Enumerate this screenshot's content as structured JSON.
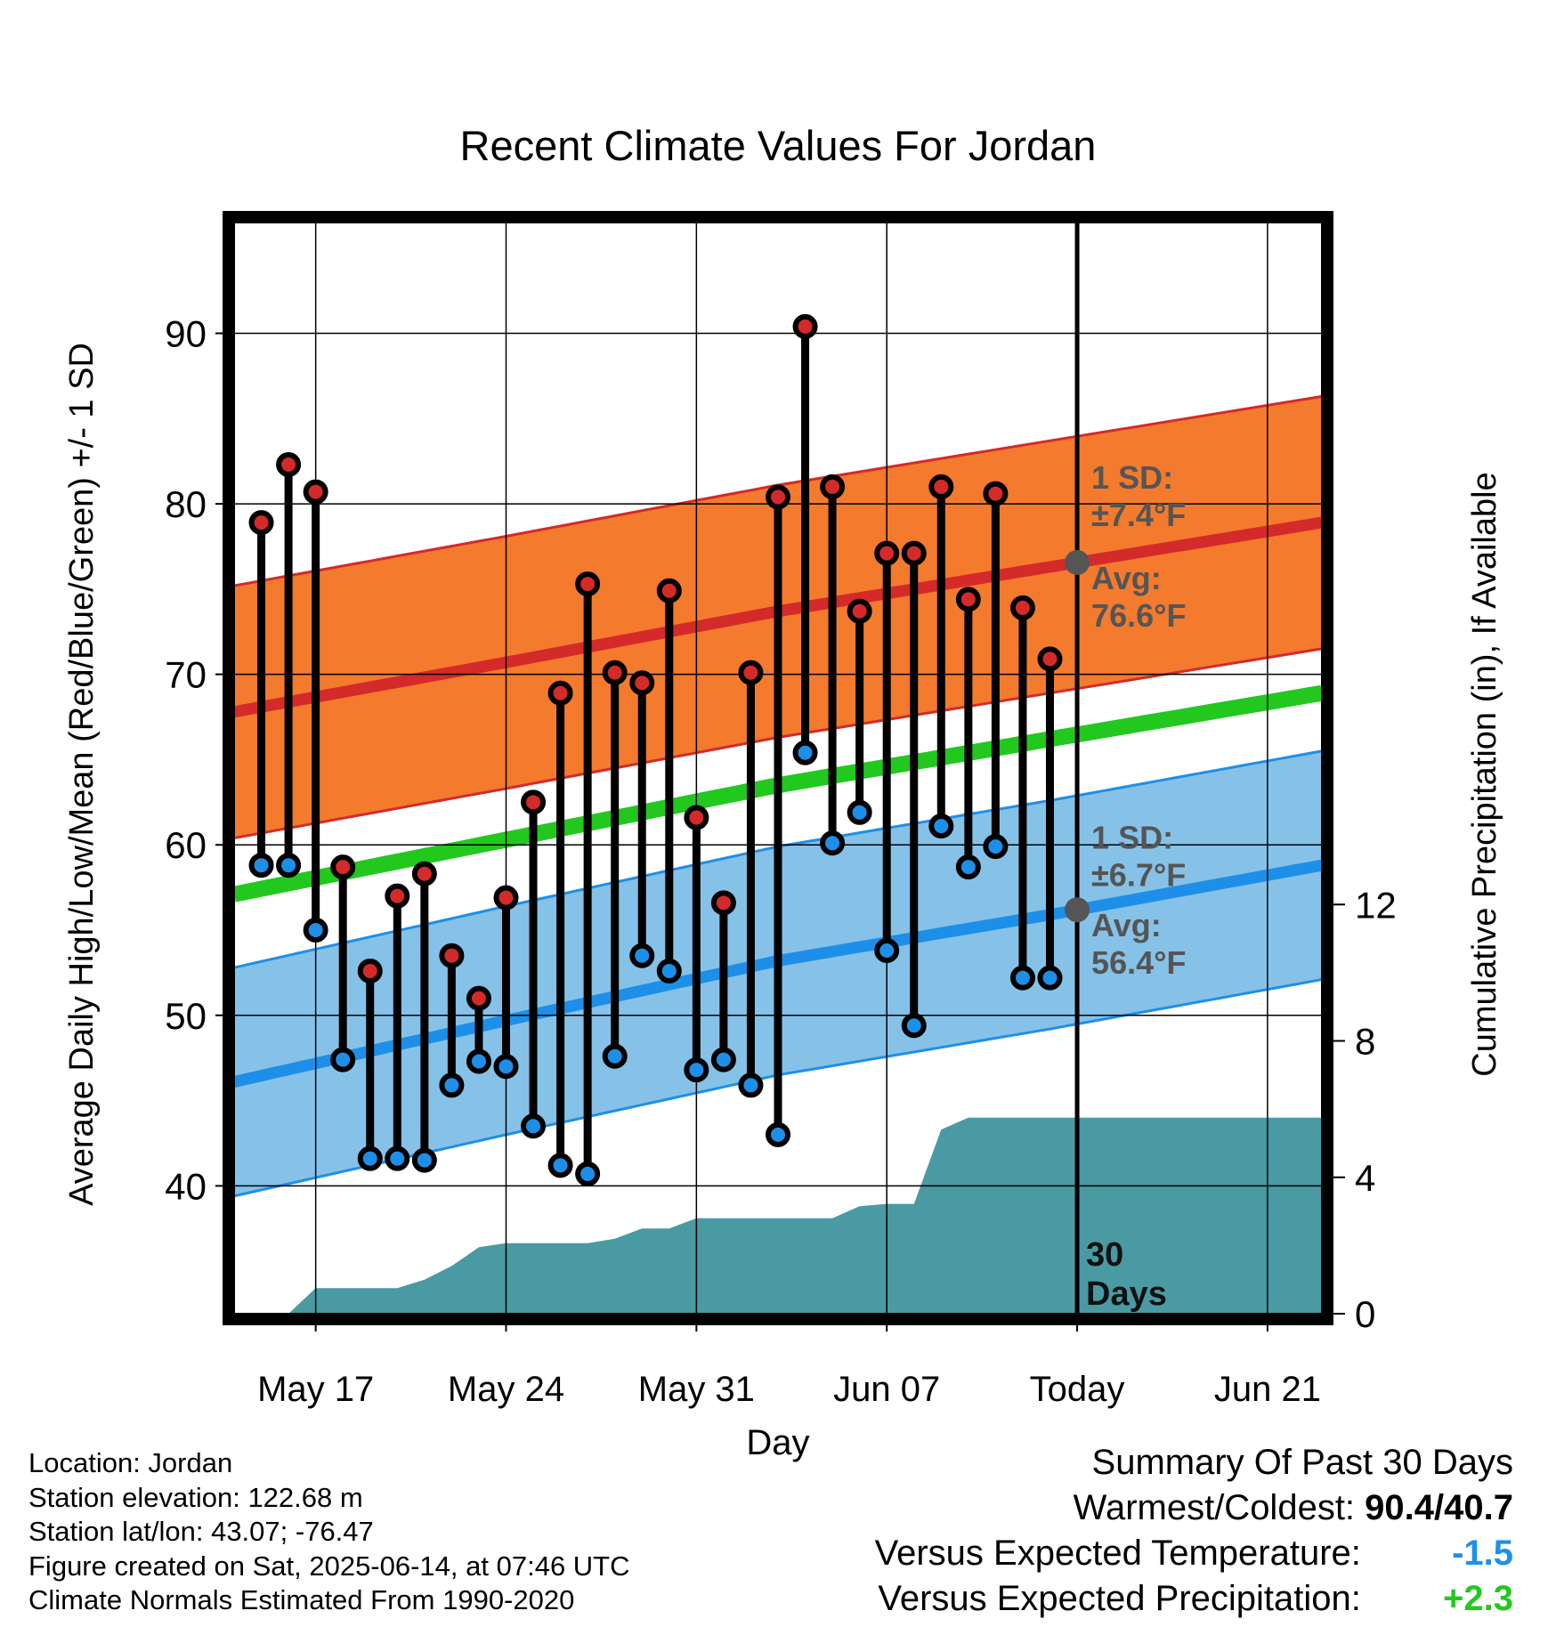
{
  "chart_data": {
    "type": "line",
    "title": "Recent Climate Values For Jordan",
    "xlabel": "Day",
    "ylabel_left": "Average Daily High/Low/Mean (Red/Blue/Green) +/- 1 SD",
    "ylabel_right": "Cumulative Precipitation (in), If Available",
    "ylim_left": [
      32.5,
      96.5
    ],
    "ylim_right": [
      0,
      32
    ],
    "yticks_left": [
      40,
      50,
      60,
      70,
      80,
      90
    ],
    "yticks_right": [
      0,
      4,
      8,
      12
    ],
    "x_range": [
      "2025-05-14",
      "2025-06-23"
    ],
    "x_ticks": [
      {
        "date": "2025-05-17",
        "label": "May 17"
      },
      {
        "date": "2025-05-24",
        "label": "May 24"
      },
      {
        "date": "2025-05-31",
        "label": "May 31"
      },
      {
        "date": "2025-06-07",
        "label": "Jun 07"
      },
      {
        "date": "2025-06-14",
        "label": "Today"
      },
      {
        "date": "2025-06-21",
        "label": "Jun 21"
      }
    ],
    "today": "2025-06-14",
    "days_label": "30 Days",
    "grid": true,
    "colors": {
      "high": "#d42a2a",
      "high_band": "#f47a2e",
      "low": "#1e8fe8",
      "low_band": "#86c2e8",
      "mean": "#22c81e",
      "precip": "#4a9aa3",
      "stick": "#000000",
      "today_dot": "#555555"
    },
    "normals": {
      "dates": [
        "2025-05-14",
        "2025-05-24",
        "2025-06-03",
        "2025-06-13",
        "2025-06-23"
      ],
      "avg_high": [
        67.8,
        70.7,
        73.7,
        76.3,
        78.9
      ],
      "avg_low": [
        46.1,
        49.7,
        53.2,
        55.9,
        58.8
      ],
      "avg_mean": [
        57.1,
        60.3,
        63.5,
        66.2,
        68.9
      ]
    },
    "annotations": {
      "high_sd_label": "1 SD:",
      "high_sd_value": "±7.4°F",
      "high_avg_label": "Avg:",
      "high_avg_value": "76.6°F",
      "low_sd_label": "1 SD:",
      "low_sd_value": "±6.7°F",
      "low_avg_label": "Avg:",
      "low_avg_value": "56.4°F"
    },
    "sd": {
      "high": 7.4,
      "low": 6.7
    },
    "series": [
      {
        "name": "High",
        "dates": [
          "2025-05-15",
          "2025-05-16",
          "2025-05-17",
          "2025-05-18",
          "2025-05-19",
          "2025-05-20",
          "2025-05-21",
          "2025-05-22",
          "2025-05-23",
          "2025-05-24",
          "2025-05-25",
          "2025-05-26",
          "2025-05-27",
          "2025-05-28",
          "2025-05-29",
          "2025-05-30",
          "2025-05-31",
          "2025-06-01",
          "2025-06-02",
          "2025-06-03",
          "2025-06-04",
          "2025-06-05",
          "2025-06-06",
          "2025-06-07",
          "2025-06-08",
          "2025-06-09",
          "2025-06-10",
          "2025-06-11",
          "2025-06-12",
          "2025-06-13"
        ],
        "values": [
          78.9,
          82.3,
          80.7,
          58.7,
          52.6,
          57.0,
          58.3,
          53.5,
          51.0,
          56.9,
          62.5,
          68.9,
          75.3,
          70.1,
          69.5,
          74.9,
          61.6,
          56.6,
          70.1,
          80.4,
          90.4,
          81.0,
          73.7,
          77.1,
          77.1,
          81.0,
          74.4,
          80.6,
          73.9,
          70.9
        ]
      },
      {
        "name": "Low",
        "dates": [
          "2025-05-15",
          "2025-05-16",
          "2025-05-17",
          "2025-05-18",
          "2025-05-19",
          "2025-05-20",
          "2025-05-21",
          "2025-05-22",
          "2025-05-23",
          "2025-05-24",
          "2025-05-25",
          "2025-05-26",
          "2025-05-27",
          "2025-05-28",
          "2025-05-29",
          "2025-05-30",
          "2025-05-31",
          "2025-06-01",
          "2025-06-02",
          "2025-06-03",
          "2025-06-04",
          "2025-06-05",
          "2025-06-06",
          "2025-06-07",
          "2025-06-08",
          "2025-06-09",
          "2025-06-10",
          "2025-06-11",
          "2025-06-12",
          "2025-06-13"
        ],
        "values": [
          58.8,
          58.8,
          55.0,
          47.4,
          41.6,
          41.6,
          41.5,
          45.9,
          47.3,
          47.0,
          43.5,
          41.2,
          40.7,
          47.6,
          53.5,
          52.6,
          46.8,
          47.4,
          45.9,
          43.0,
          65.4,
          60.1,
          61.9,
          53.8,
          49.4,
          61.1,
          58.7,
          59.9,
          52.2,
          52.2
        ]
      },
      {
        "name": "Cumulative Precipitation",
        "axis": "right",
        "dates": [
          "2025-05-15",
          "2025-05-16",
          "2025-05-17",
          "2025-05-18",
          "2025-05-19",
          "2025-05-20",
          "2025-05-21",
          "2025-05-22",
          "2025-05-23",
          "2025-05-24",
          "2025-05-25",
          "2025-05-26",
          "2025-05-27",
          "2025-05-28",
          "2025-05-29",
          "2025-05-30",
          "2025-05-31",
          "2025-06-01",
          "2025-06-02",
          "2025-06-03",
          "2025-06-04",
          "2025-06-05",
          "2025-06-06",
          "2025-06-07",
          "2025-06-08",
          "2025-06-09",
          "2025-06-10",
          "2025-06-11",
          "2025-06-23"
        ],
        "values": [
          0.0,
          0.0,
          0.75,
          0.75,
          0.75,
          0.75,
          1.0,
          1.4,
          1.95,
          2.07,
          2.07,
          2.07,
          2.07,
          2.2,
          2.5,
          2.5,
          2.8,
          2.8,
          2.8,
          2.8,
          2.8,
          2.8,
          3.15,
          3.22,
          3.22,
          5.4,
          5.75,
          5.75,
          5.75
        ]
      }
    ]
  },
  "info": {
    "location": "Location: Jordan",
    "elevation": "Station elevation: 122.68 m",
    "latlon": "Station lat/lon: 43.07; -76.47",
    "created": "Figure created on Sat, 2025-06-14, at 07:46 UTC",
    "normals": "Climate Normals Estimated From 1990-2020"
  },
  "summary": {
    "title": "Summary Of Past 30 Days",
    "warm_cold_label": "Warmest/Coldest:",
    "warm_cold_value": "90.4/40.7",
    "temp_label": "Versus Expected Temperature:",
    "temp_value": "-1.5",
    "temp_color": "#1e8fe8",
    "precip_label": "Versus Expected Precipitation:",
    "precip_value": "+2.3",
    "precip_color": "#22c81e"
  }
}
